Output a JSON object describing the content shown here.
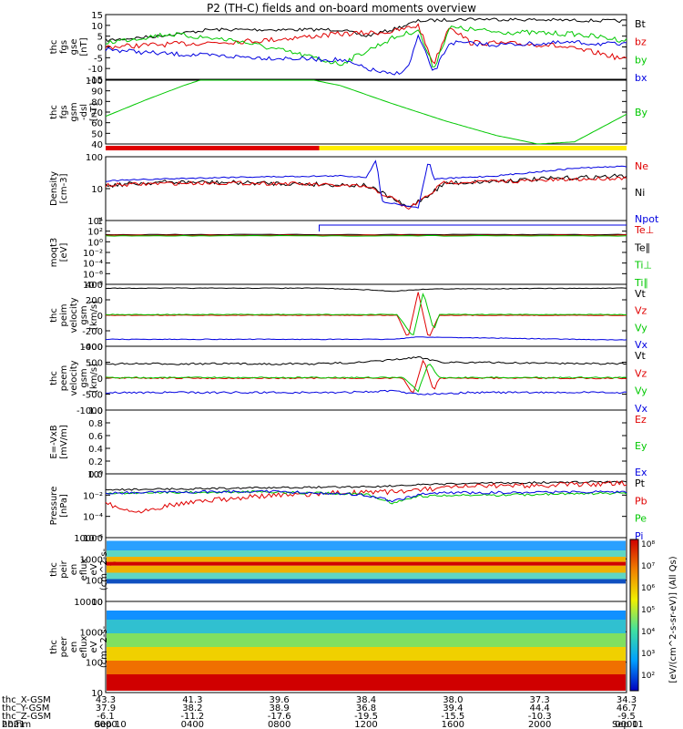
{
  "title": "P2 (TH-C) fields and on-board moments overview",
  "colors": {
    "black": "#000000",
    "red": "#e00000",
    "green": "#00c800",
    "blue": "#0000e0",
    "yellow": "#ffee00"
  },
  "panels": [
    {
      "id": "fgs-gse",
      "ylabel": [
        "thc",
        "fgs",
        "gse",
        "[nT]"
      ],
      "ticks": [
        "15",
        "10",
        "5",
        "0",
        "-5",
        "-10",
        "-15"
      ],
      "legend": [
        {
          "text": "Bt",
          "color": "black"
        },
        {
          "text": "bz",
          "color": "red"
        },
        {
          "text": "by",
          "color": "green"
        },
        {
          "text": "bx",
          "color": "blue"
        }
      ]
    },
    {
      "id": "fgs-gsm-dsl",
      "ylabel": [
        "thc",
        "fgs",
        "gsm",
        "-dsl",
        "[nT]"
      ],
      "ticks": [
        "100",
        "90",
        "80",
        "70",
        "60",
        "50",
        "40"
      ],
      "legend": [
        {
          "text": "By",
          "color": "green"
        }
      ]
    },
    {
      "id": "density",
      "ylabel": [
        "Density",
        "[cm-3]"
      ],
      "ticks": [
        "100",
        "10",
        "1"
      ],
      "legend": [
        {
          "text": "Ne",
          "color": "red"
        },
        {
          "text": "Ni",
          "color": "black"
        },
        {
          "text": "Npot",
          "color": "blue"
        }
      ]
    },
    {
      "id": "temperature",
      "ylabel": [
        "moqt3",
        "[eV]"
      ],
      "ticks": [
        "10⁴",
        "10²",
        "10⁰",
        "10⁻²",
        "10⁻⁴",
        "10⁻⁶",
        "10⁻⁸"
      ],
      "legend": [
        {
          "text": "Te⊥",
          "color": "red"
        },
        {
          "text": "Te∥",
          "color": "black"
        },
        {
          "text": "Ti⊥",
          "color": "green"
        },
        {
          "text": "Ti∥",
          "color": "green"
        }
      ]
    },
    {
      "id": "peim-velocity",
      "ylabel": [
        "thc",
        "peim",
        "velocity",
        "gsm",
        "[km/s]"
      ],
      "ticks": [
        "400",
        "200",
        "0",
        "-200",
        "-400"
      ],
      "legend": [
        {
          "text": "Vt",
          "color": "black"
        },
        {
          "text": "Vz",
          "color": "red"
        },
        {
          "text": "Vy",
          "color": "green"
        },
        {
          "text": "Vx",
          "color": "blue"
        }
      ]
    },
    {
      "id": "peem-velocity",
      "ylabel": [
        "thc",
        "peem",
        "velocity",
        "gsm",
        "[km/s]"
      ],
      "ticks": [
        "1000",
        "500",
        "0",
        "-500",
        "-1000"
      ],
      "legend": [
        {
          "text": "Vt",
          "color": "black"
        },
        {
          "text": "Vz",
          "color": "red"
        },
        {
          "text": "Vy",
          "color": "green"
        },
        {
          "text": "Vx",
          "color": "blue"
        }
      ]
    },
    {
      "id": "efield",
      "ylabel": [
        "E=-VxB",
        "[mV/m]"
      ],
      "ticks": [
        "1.0",
        "0.8",
        "0.6",
        "0.4",
        "0.2",
        "0.0"
      ],
      "legend": [
        {
          "text": "Ez",
          "color": "red"
        },
        {
          "text": "Ey",
          "color": "green"
        },
        {
          "text": "Ex",
          "color": "blue"
        }
      ]
    },
    {
      "id": "pressure",
      "ylabel": [
        "Pressure",
        "[nPa]"
      ],
      "ticks": [
        "10⁰",
        "10⁻²",
        "10⁻⁴",
        "10⁻⁶"
      ],
      "legend": [
        {
          "text": "Pt",
          "color": "black"
        },
        {
          "text": "Pb",
          "color": "red"
        },
        {
          "text": "Pe",
          "color": "green"
        },
        {
          "text": "Pi",
          "color": "blue"
        }
      ]
    },
    {
      "id": "peir-eflux",
      "ylabel": [
        "thc",
        "peir",
        "en",
        "eflux",
        "eV",
        "(cm^2-s-",
        "sr-eV)"
      ],
      "ticks": [
        "10000",
        "1000",
        "100",
        "10"
      ]
    },
    {
      "id": "peer-eflux",
      "ylabel": [
        "thc",
        "peer",
        "en",
        "eflux",
        "eV",
        "(cm^2-s-",
        "sr-eV)"
      ],
      "ticks": [
        "10000",
        "1000",
        "100",
        "10"
      ]
    }
  ],
  "colorbar": {
    "label": "[eV/(cm^2-s-sr-eV)] (All Qs)",
    "ticks": [
      "10⁸",
      "10⁷",
      "10⁶",
      "10⁵",
      "10⁴",
      "10³",
      "10²"
    ]
  },
  "xaxis": {
    "rows": [
      {
        "label": "thc_X-GSM",
        "values": [
          "43.3",
          "41.3",
          "39.6",
          "38.4",
          "38.0",
          "37.3",
          "34.3"
        ]
      },
      {
        "label": "thc_Y-GSM",
        "values": [
          "37.9",
          "38.2",
          "38.9",
          "36.8",
          "39.4",
          "44.4",
          "46.7"
        ]
      },
      {
        "label": "thc_Z-GSM",
        "values": [
          "-6.1",
          "-11.2",
          "-17.6",
          "-19.5",
          "-15.5",
          "-10.3",
          "-9.5"
        ]
      },
      {
        "label": "hhmm",
        "values": [
          "0000",
          "0400",
          "0800",
          "1200",
          "1600",
          "2000",
          "0000"
        ]
      }
    ],
    "year": "2021",
    "start_date": "Sep 10",
    "end_date": "Sep 11"
  },
  "chart_data": {
    "type": "line",
    "title": "P2 (TH-C) fields and on-board moments overview",
    "x": [
      "0000",
      "0400",
      "0800",
      "1200",
      "1600",
      "2000",
      "0000"
    ],
    "series": [
      {
        "name": "Bt",
        "panel": "fgs-gse",
        "values": [
          5,
          8,
          7,
          9,
          10,
          11,
          10
        ]
      },
      {
        "name": "bz",
        "panel": "fgs-gse",
        "values": [
          0,
          2,
          5,
          6,
          4,
          2,
          -5
        ]
      },
      {
        "name": "by",
        "panel": "fgs-gse",
        "values": [
          2,
          5,
          -2,
          -6,
          8,
          5,
          3
        ]
      },
      {
        "name": "bx",
        "panel": "fgs-gse",
        "values": [
          -1,
          -3,
          -5,
          -12,
          0,
          2,
          1
        ]
      },
      {
        "name": "By",
        "panel": "fgs-gsm-dsl",
        "values": [
          65,
          98,
          102,
          82,
          58,
          40,
          68
        ]
      },
      {
        "name": "Ni",
        "panel": "density",
        "values": [
          6,
          9,
          6,
          8,
          13,
          14,
          18
        ]
      },
      {
        "name": "Npot",
        "panel": "density",
        "values": [
          10,
          15,
          15,
          20,
          30,
          50,
          60
        ]
      },
      {
        "name": "Ne",
        "panel": "density",
        "values": [
          7,
          8,
          7,
          7,
          12,
          15,
          20
        ]
      },
      {
        "name": "Vt",
        "panel": "peim-velocity",
        "values": [
          350,
          350,
          350,
          350,
          320,
          330,
          340
        ]
      },
      {
        "name": "Vx",
        "panel": "peim-velocity",
        "values": [
          -310,
          -320,
          -300,
          -280,
          -300,
          -310,
          -320
        ]
      }
    ]
  }
}
